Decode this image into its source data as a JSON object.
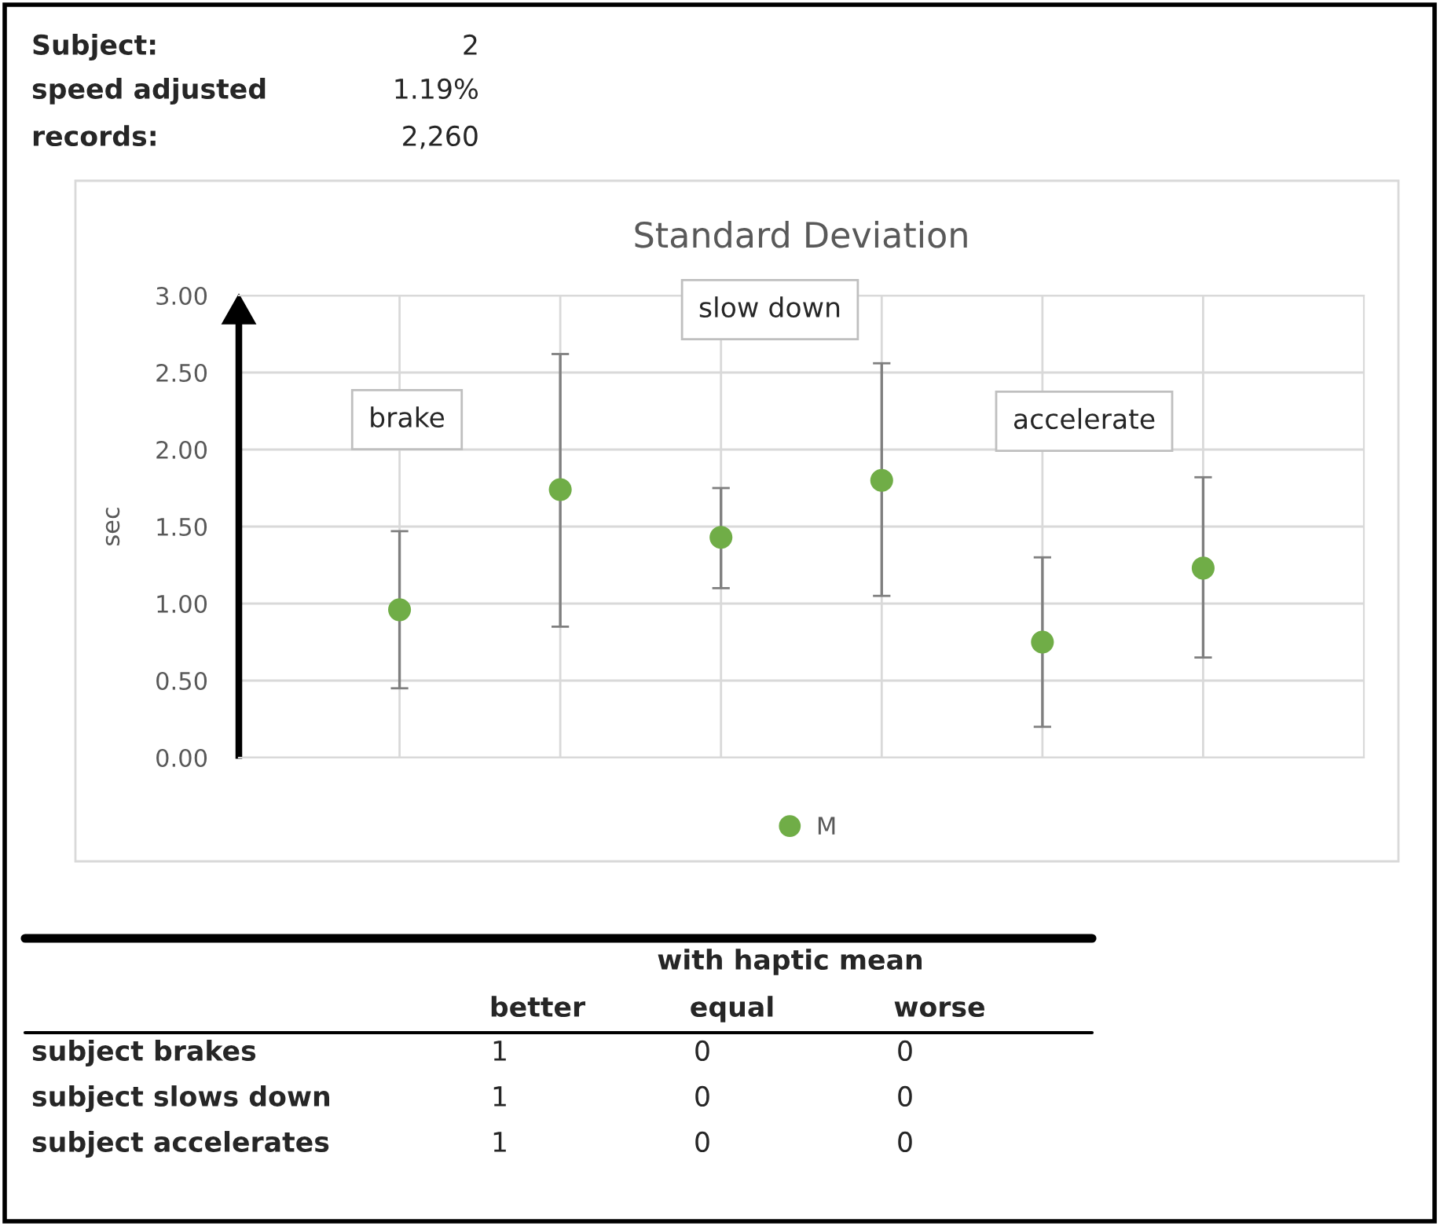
{
  "chart_data": {
    "type": "scatter",
    "title": "Standard Deviation",
    "ylabel": "sec",
    "categories": [
      null,
      null,
      null,
      null,
      null,
      null
    ],
    "series": [
      {
        "name": "M",
        "color": "#70ad47",
        "values": [
          0.96,
          1.74,
          1.43,
          1.8,
          0.75,
          1.23
        ],
        "errors": [
          [
            0.45,
            1.47
          ],
          [
            0.85,
            2.62
          ],
          [
            1.1,
            1.75
          ],
          [
            1.05,
            2.56
          ],
          [
            0.2,
            1.3
          ],
          [
            0.65,
            1.82
          ]
        ]
      }
    ],
    "ylim": [
      0,
      3
    ],
    "yticks": [
      {
        "value": 0,
        "label": "0.00"
      },
      {
        "value": 0.5,
        "label": "0.50"
      },
      {
        "value": 1,
        "label": "1.00"
      },
      {
        "value": 1.5,
        "label": "1.50"
      },
      {
        "value": 2,
        "label": "2.00"
      },
      {
        "value": 2.5,
        "label": "2.50"
      },
      {
        "value": 3,
        "label": "3.00"
      }
    ],
    "grid": true,
    "legend": "bottom",
    "marker": "circle",
    "annotations": [
      "Subject:",
      "2",
      "speed adjusted",
      "1.19%",
      "records:",
      "2,260",
      "brake",
      "slow down",
      "accelerate",
      "with haptic mean",
      "better",
      "equal",
      "worse",
      "subject brakes",
      "1",
      "0",
      "0",
      "subject slows down",
      "1",
      "0",
      "0",
      "subject accelerates",
      "1",
      "0",
      "0"
    ]
  }
}
